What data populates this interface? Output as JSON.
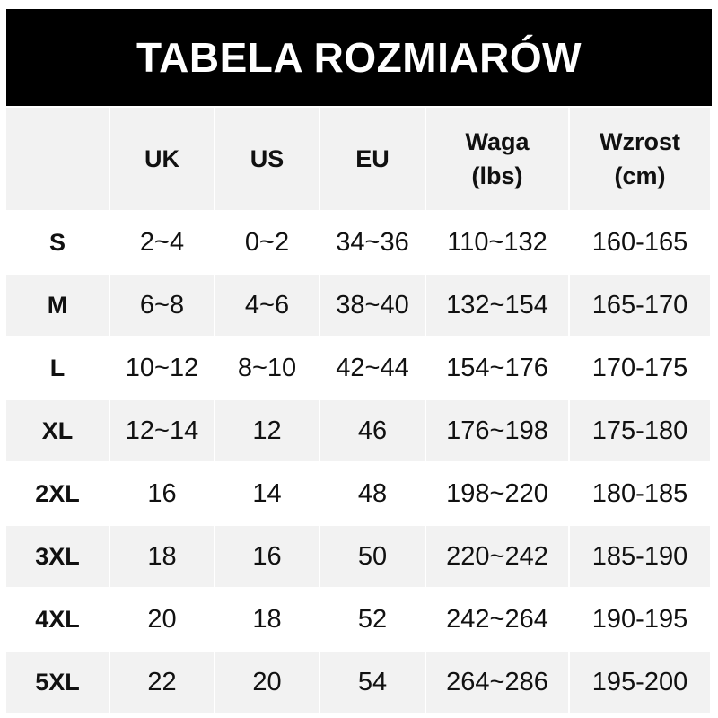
{
  "title": "TABELA ROZMIARÓW",
  "headers": [
    "",
    "UK",
    "US",
    "EU",
    "Waga\n(lbs)",
    "Wzrost\n(cm)"
  ],
  "header_lines": {
    "waga": [
      "Waga",
      "(lbs)"
    ],
    "wzrost": [
      "Wzrost",
      "(cm)"
    ]
  },
  "rows": [
    [
      "S",
      "2~4",
      "0~2",
      "34~36",
      "110~132",
      "160-165"
    ],
    [
      "M",
      "6~8",
      "4~6",
      "38~40",
      "132~154",
      "165-170"
    ],
    [
      "L",
      "10~12",
      "8~10",
      "42~44",
      "154~176",
      "170-175"
    ],
    [
      "XL",
      "12~14",
      "12",
      "46",
      "176~198",
      "175-180"
    ],
    [
      "2XL",
      "16",
      "14",
      "48",
      "198~220",
      "180-185"
    ],
    [
      "3XL",
      "18",
      "16",
      "50",
      "220~242",
      "185-190"
    ],
    [
      "4XL",
      "20",
      "18",
      "52",
      "242~264",
      "190-195"
    ],
    [
      "5XL",
      "22",
      "20",
      "54",
      "264~286",
      "195-200"
    ]
  ],
  "colors": {
    "title_bg": "#000000",
    "stripe": "#f2f2f2",
    "text": "#111111"
  }
}
